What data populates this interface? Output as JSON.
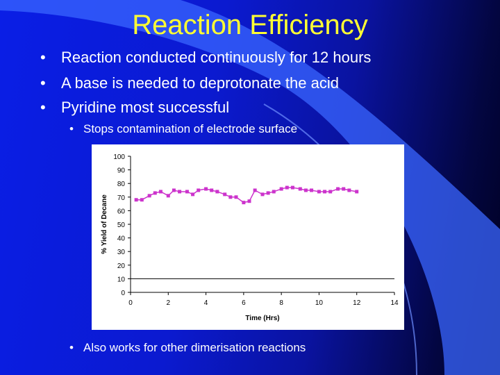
{
  "slide": {
    "title": "Reaction Efficiency",
    "bullets": [
      "Reaction conducted continuously for 12 hours",
      "A base is needed to deprotonate the acid",
      "Pyridine most successful"
    ],
    "sub_bullets": [
      "Stops contamination of electrode surface",
      "Also works for other dimerisation reactions"
    ],
    "bullet_glyph": "•"
  },
  "colors": {
    "background": "#0a1ee6",
    "title": "#ffff33",
    "text": "#ffffff",
    "series": "#cc33cc"
  },
  "chart_data": {
    "type": "line",
    "xlabel": "Time (Hrs)",
    "ylabel": "% Yield of Decane",
    "xlim": [
      0,
      14
    ],
    "ylim": [
      0,
      100
    ],
    "xticks": [
      0,
      2,
      4,
      6,
      8,
      10,
      12,
      14
    ],
    "yticks": [
      0,
      10,
      20,
      30,
      40,
      50,
      60,
      70,
      80,
      90,
      100
    ],
    "gridlines": [
      10
    ],
    "series": [
      {
        "x": [
          0.3,
          0.6,
          1.0,
          1.3,
          1.6,
          2.0,
          2.3,
          2.6,
          3.0,
          3.3,
          3.6,
          4.0,
          4.3,
          4.6,
          5.0,
          5.3,
          5.6,
          6.0,
          6.3,
          6.6,
          7.0,
          7.3,
          7.6,
          8.0,
          8.3,
          8.6,
          9.0,
          9.3,
          9.6,
          10.0,
          10.3,
          10.6,
          11.0,
          11.3,
          11.6,
          12.0
        ],
        "values": [
          68,
          68,
          71,
          73,
          74,
          71,
          75,
          74,
          74,
          72,
          75,
          76,
          75,
          74,
          72,
          70,
          70,
          66,
          67,
          75,
          72,
          73,
          74,
          76,
          77,
          77,
          76,
          75,
          75,
          74,
          74,
          74,
          76,
          76,
          75,
          74
        ]
      }
    ]
  }
}
